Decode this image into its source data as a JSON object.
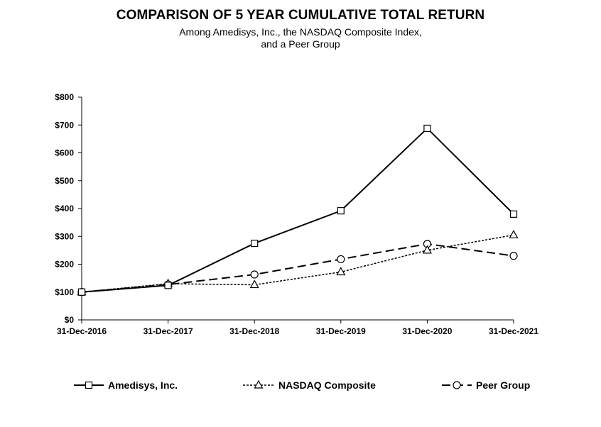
{
  "title": "COMPARISON OF 5 YEAR CUMULATIVE TOTAL RETURN",
  "subtitle_line1": "Among Amedisys, Inc., the NASDAQ Composite Index,",
  "subtitle_line2": "and a Peer Group",
  "chart_data": {
    "type": "line",
    "title": "COMPARISON OF 5 YEAR CUMULATIVE TOTAL RETURN",
    "subtitle": "Among Amedisys, Inc., the NASDAQ Composite Index, and a Peer Group",
    "xlabel": "",
    "ylabel": "",
    "categories": [
      "31-Dec-2016",
      "31-Dec-2017",
      "31-Dec-2018",
      "31-Dec-2019",
      "31-Dec-2020",
      "31-Dec-2021"
    ],
    "ylim": [
      0,
      800
    ],
    "yticks": [
      0,
      100,
      200,
      300,
      400,
      500,
      600,
      700,
      800
    ],
    "ytick_labels": [
      "$0",
      "$100",
      "$200",
      "$300",
      "$400",
      "$500",
      "$600",
      "$700",
      "$800"
    ],
    "grid": false,
    "legend_position": "bottom",
    "series": [
      {
        "name": "Amedisys, Inc.",
        "values": [
          100,
          124,
          275,
          392,
          688,
          380
        ],
        "marker": "square",
        "dash": "solid",
        "color": "#000000"
      },
      {
        "name": "NASDAQ Composite",
        "values": [
          100,
          130,
          126,
          172,
          250,
          305
        ],
        "marker": "triangle",
        "dash": "dotted",
        "color": "#000000"
      },
      {
        "name": "Peer Group",
        "values": [
          100,
          127,
          163,
          218,
          273,
          230
        ],
        "marker": "circle",
        "dash": "long-dash",
        "color": "#000000"
      }
    ]
  }
}
